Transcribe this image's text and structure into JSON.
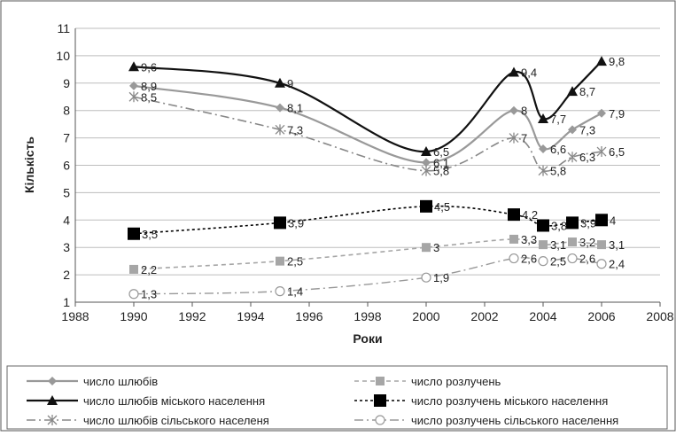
{
  "chart_data": {
    "type": "line",
    "title": "",
    "xlabel": "Роки",
    "ylabel": "Кількість",
    "xlim": [
      1988,
      2008
    ],
    "ylim": [
      1,
      11
    ],
    "xticks": [
      1988,
      1990,
      1992,
      1994,
      1996,
      1998,
      2000,
      2002,
      2004,
      2006,
      2008
    ],
    "yticks": [
      1,
      2,
      3,
      4,
      5,
      6,
      7,
      8,
      9,
      10,
      11
    ],
    "grid": "horizontal",
    "legend_position": "bottom",
    "series": [
      {
        "name": "число шлюбів",
        "color": "#999999",
        "dash": "",
        "marker": "diamond",
        "width": 2.2,
        "points": [
          [
            1990,
            8.9
          ],
          [
            1995,
            8.1
          ],
          [
            2000,
            6.1
          ],
          [
            2003,
            8
          ],
          [
            2004,
            6.6
          ],
          [
            2005,
            7.3
          ],
          [
            2006,
            7.9
          ]
        ],
        "labels": [
          "8,9",
          "8,1",
          "6,1",
          "8",
          "6,6",
          "7,3",
          "7,9"
        ]
      },
      {
        "name": "число шлюбів  міського населення",
        "color": "#111111",
        "dash": "",
        "marker": "triangle",
        "width": 2.2,
        "points": [
          [
            1990,
            9.6
          ],
          [
            1995,
            9
          ],
          [
            2000,
            6.5
          ],
          [
            2003,
            9.4
          ],
          [
            2004,
            7.7
          ],
          [
            2005,
            8.7
          ],
          [
            2006,
            9.8
          ]
        ],
        "labels": [
          "9,6",
          "9",
          "6,5",
          "9,4",
          "7,7",
          "8,7",
          "9,8"
        ]
      },
      {
        "name": "число шлюбів сільського населеня",
        "color": "#888888",
        "dash": "10 4 2 4",
        "marker": "asterisk",
        "width": 1.6,
        "points": [
          [
            1990,
            8.5
          ],
          [
            1995,
            7.3
          ],
          [
            2000,
            5.8
          ],
          [
            2003,
            7
          ],
          [
            2004,
            5.8
          ],
          [
            2005,
            6.3
          ],
          [
            2006,
            6.5
          ]
        ],
        "labels": [
          "8,5",
          "7,3",
          "5,8",
          "7",
          "5,8",
          "6,3",
          "6,5"
        ]
      },
      {
        "name": "число розлучень",
        "color": "#a6a6a6",
        "dash": "5 4",
        "marker": "square",
        "width": 1.6,
        "points": [
          [
            1990,
            2.2
          ],
          [
            1995,
            2.5
          ],
          [
            2000,
            3
          ],
          [
            2003,
            3.3
          ],
          [
            2004,
            3.1
          ],
          [
            2005,
            3.2
          ],
          [
            2006,
            3.1
          ]
        ],
        "labels": [
          "2,2",
          "2,5",
          "3",
          "3,3",
          "3,1",
          "3,2",
          "3,1"
        ]
      },
      {
        "name": "число розлучень міського населення",
        "color": "#000000",
        "dash": "3 3",
        "marker": "bigsquare",
        "width": 1.6,
        "points": [
          [
            1990,
            3.5
          ],
          [
            1995,
            3.9
          ],
          [
            2000,
            4.5
          ],
          [
            2003,
            4.2
          ],
          [
            2004,
            3.8
          ],
          [
            2005,
            3.9
          ],
          [
            2006,
            4
          ]
        ],
        "labels": [
          "3,5",
          "3,9",
          "4,5",
          "4,2",
          "3,8",
          "3,9",
          "4"
        ]
      },
      {
        "name": "число розлучень сільського населення",
        "color": "#999999",
        "dash": "10 4 2 4",
        "marker": "circle",
        "width": 1.4,
        "points": [
          [
            1990,
            1.3
          ],
          [
            1995,
            1.4
          ],
          [
            2000,
            1.9
          ],
          [
            2003,
            2.6
          ],
          [
            2004,
            2.5
          ],
          [
            2005,
            2.6
          ],
          [
            2006,
            2.4
          ]
        ],
        "labels": [
          "1,3",
          "1,4",
          "1,9",
          "2,6",
          "2,5",
          "2,6",
          "2,4"
        ]
      }
    ]
  }
}
